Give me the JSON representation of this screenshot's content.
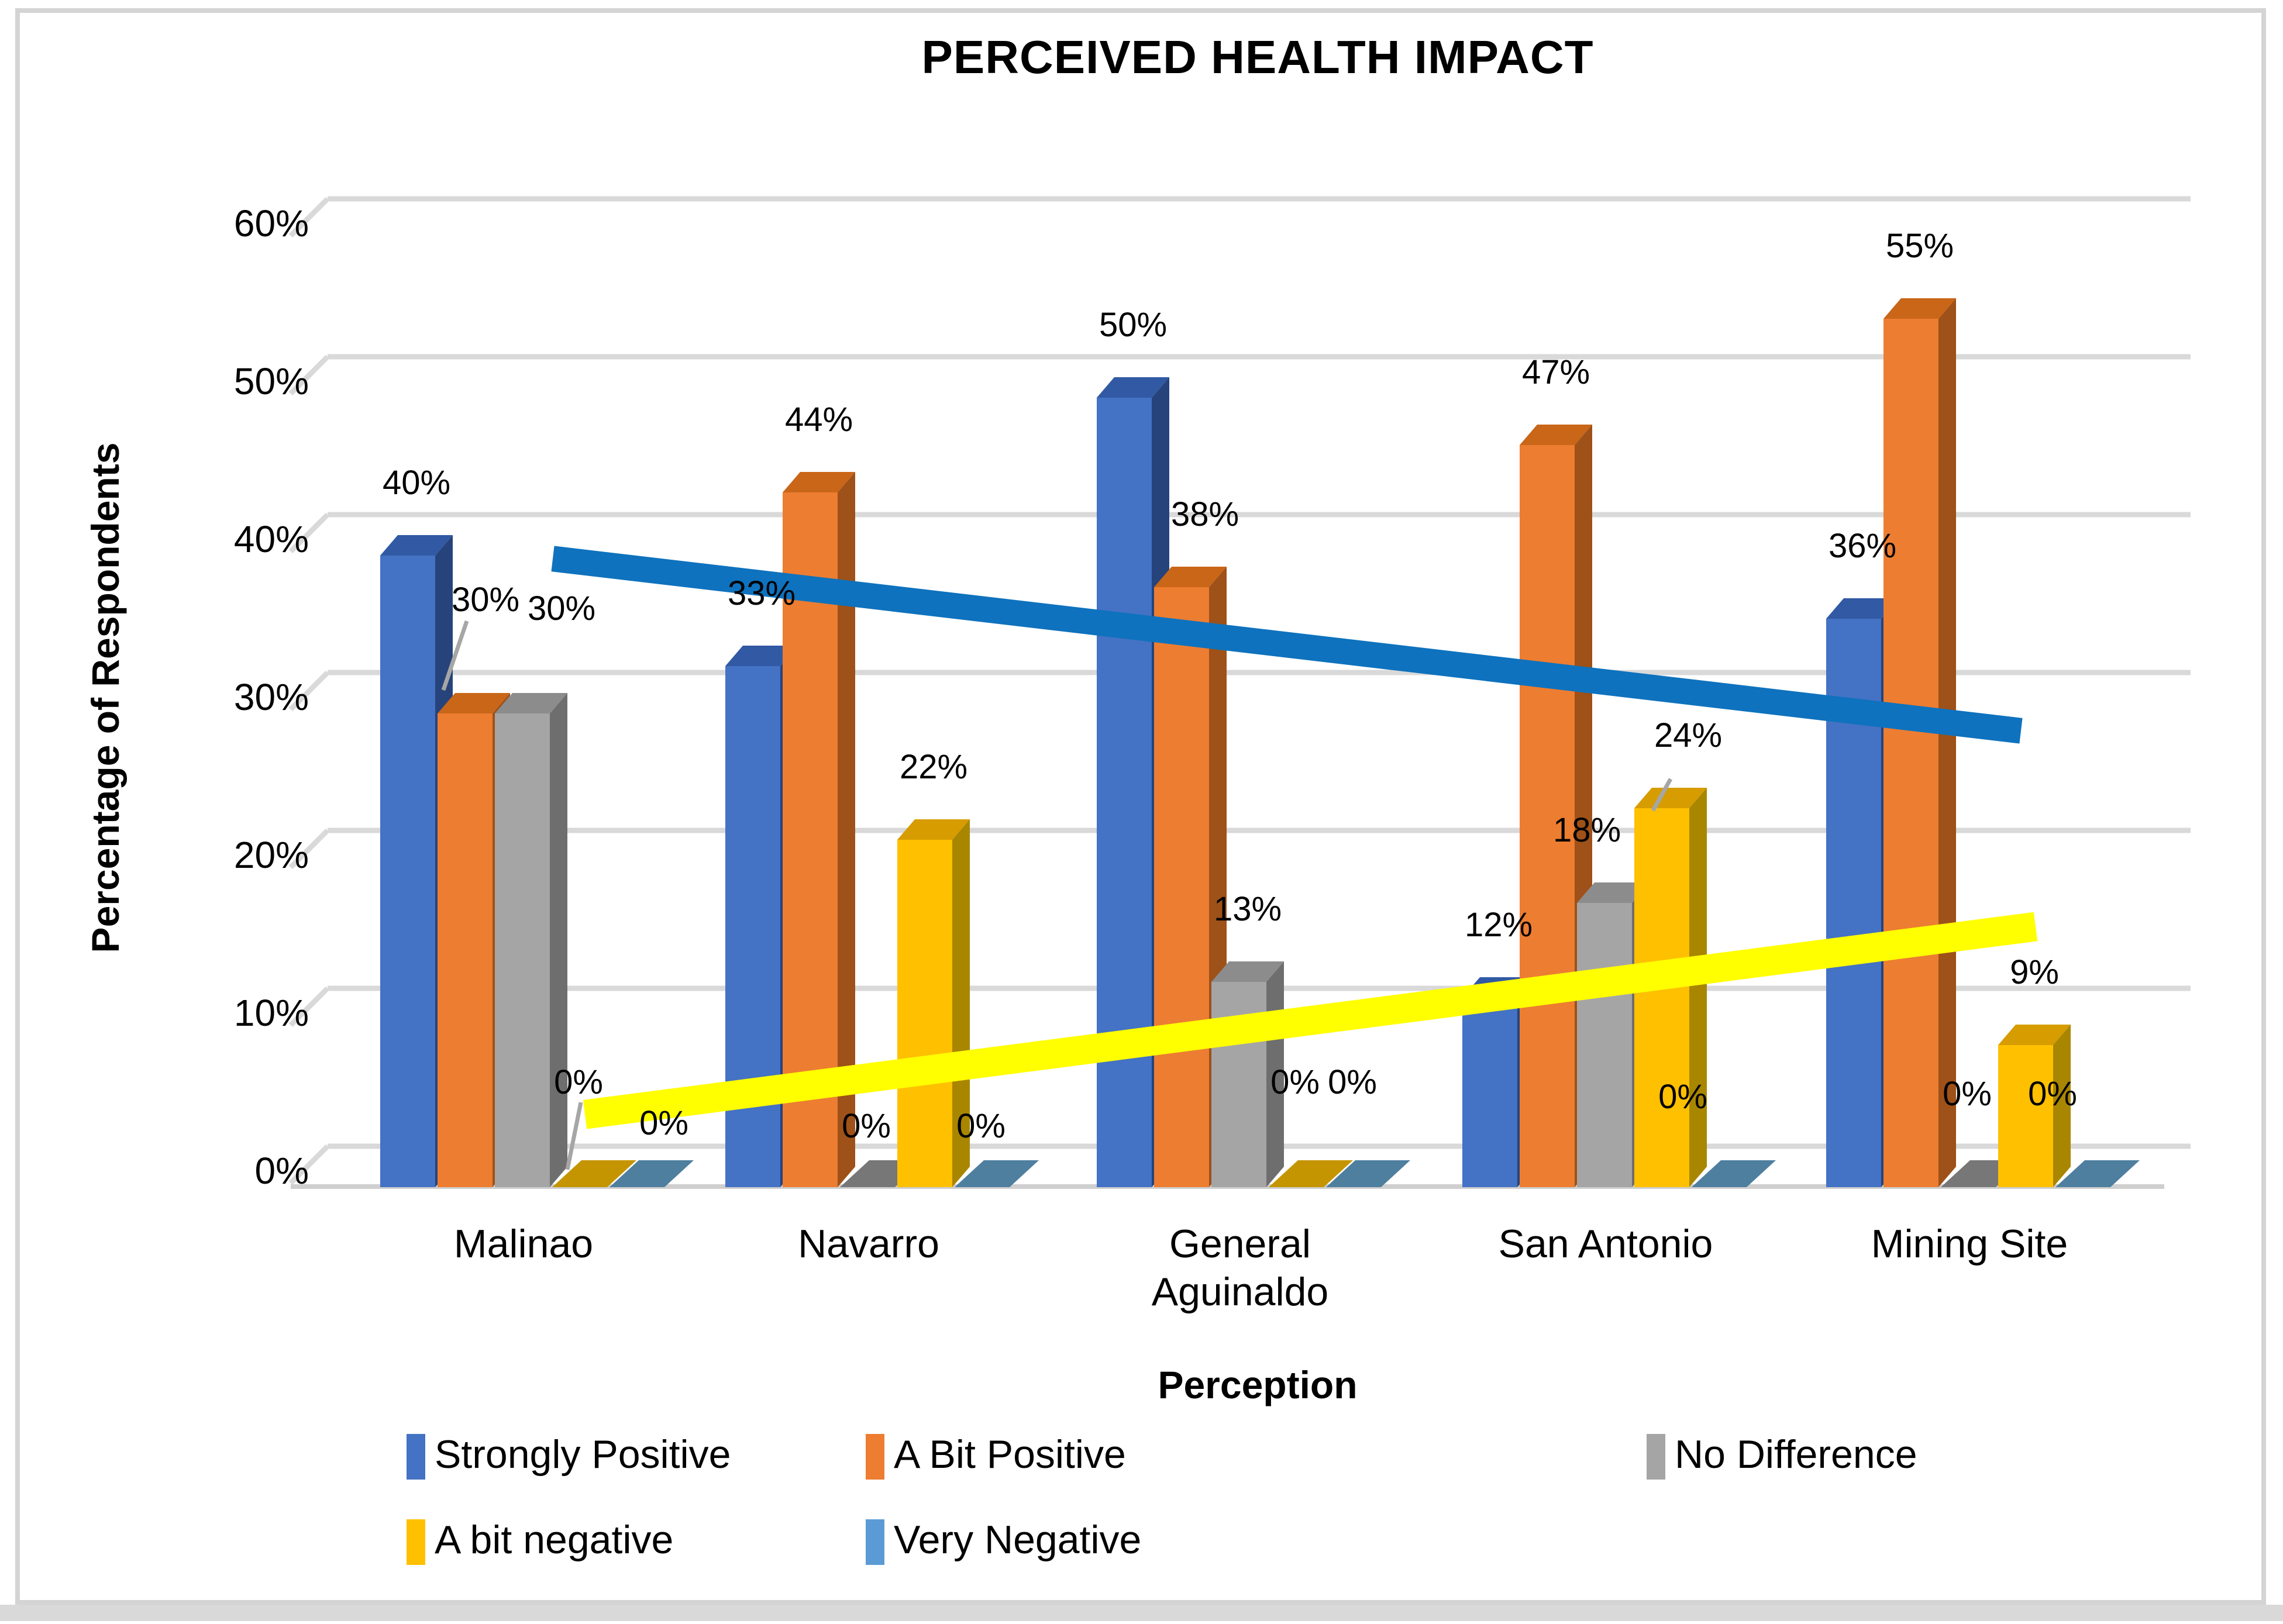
{
  "page": {
    "title": "PERCEIVED HEALTH IMPACT"
  },
  "chart_data": {
    "type": "bar",
    "style": "3d-clustered-column",
    "title": "PERCEIVED HEALTH IMPACT",
    "xlabel": "Perception",
    "ylabel": "Percentage of Respondents",
    "ylim": [
      0,
      60
    ],
    "ytick_step": 10,
    "ytick_format": "percent",
    "grid": true,
    "legend_position": "bottom",
    "data_labels_shown": true,
    "categories": [
      "Malinao",
      "Navarro",
      "General Aguinaldo",
      "San Antonio",
      "Mining Site"
    ],
    "series": [
      {
        "name": "Strongly Positive",
        "color": "#4472C4",
        "values": [
          40,
          33,
          50,
          12,
          36
        ]
      },
      {
        "name": "A Bit Positive",
        "color": "#ED7D31",
        "values": [
          30,
          44,
          38,
          47,
          55
        ]
      },
      {
        "name": "No Difference",
        "color": "#A5A5A5",
        "values": [
          30,
          0,
          13,
          18,
          0
        ]
      },
      {
        "name": "A bit negative",
        "color": "#FFC000",
        "values": [
          0,
          22,
          0,
          24,
          9
        ]
      },
      {
        "name": "Very Negative",
        "color": "#5B9BD5",
        "values": [
          0,
          0,
          0,
          0,
          0
        ]
      }
    ],
    "trendlines": [
      {
        "name": "trend-line-blue",
        "color": "#0E72BE",
        "from_percent": 39.8,
        "to_percent": 28.9
      },
      {
        "name": "trend-line-yellow",
        "color": "#FFFF00",
        "from_percent": 4.6,
        "to_percent": 16.5
      }
    ]
  }
}
